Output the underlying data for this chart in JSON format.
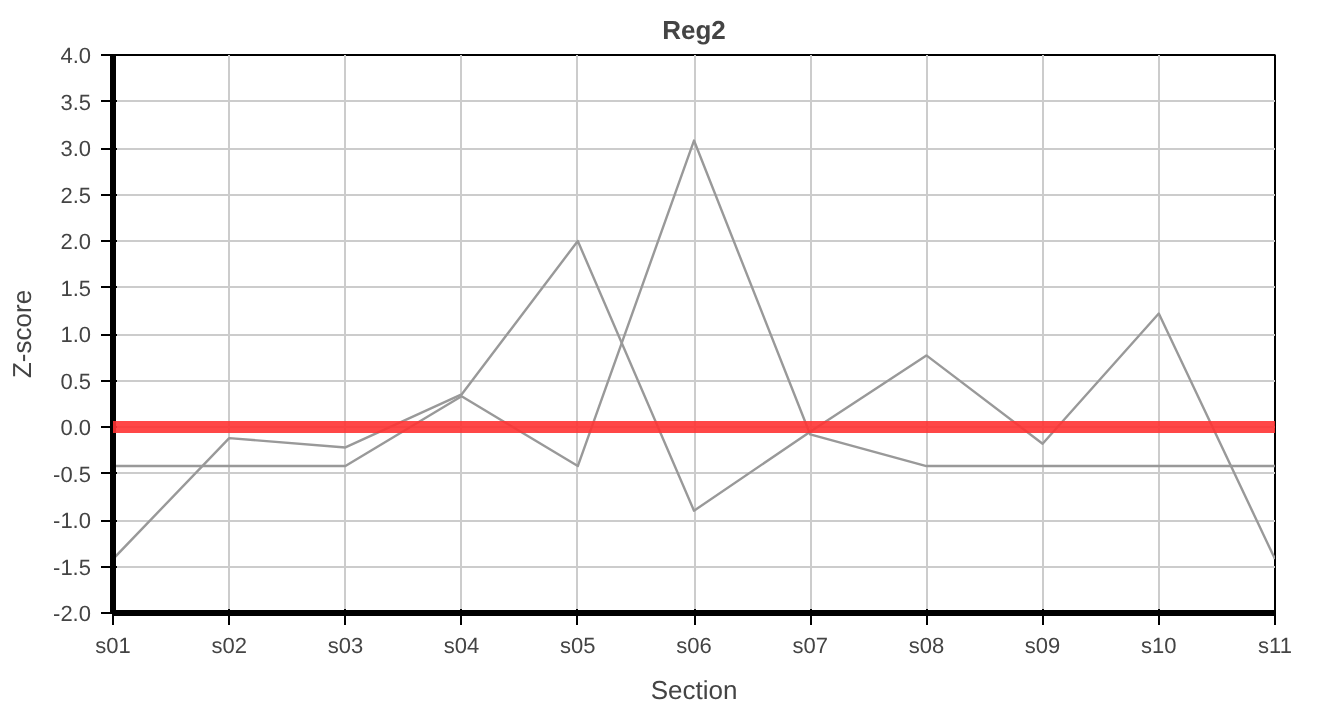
{
  "chart_data": {
    "type": "line",
    "title": "Reg2",
    "xlabel": "Section",
    "ylabel": "Z-score",
    "categories": [
      "s01",
      "s02",
      "s03",
      "s04",
      "s05",
      "s06",
      "s07",
      "s08",
      "s09",
      "s10",
      "s11"
    ],
    "series": [
      {
        "color": "#999999",
        "values": [
          -1.42,
          -0.12,
          -0.22,
          0.35,
          2.0,
          -0.9,
          -0.05,
          0.77,
          -0.18,
          1.22,
          -1.42
        ]
      },
      {
        "color": "#999999",
        "values": [
          -0.42,
          -0.42,
          -0.42,
          0.33,
          -0.42,
          3.08,
          -0.08,
          -0.42,
          -0.42,
          -0.42,
          -0.42
        ]
      }
    ],
    "ylim": [
      -2.0,
      4.0
    ],
    "yticks": [
      {
        "value": -2.0,
        "label": "-2.0"
      },
      {
        "value": -1.5,
        "label": "-1.5"
      },
      {
        "value": -1.0,
        "label": "-1.0"
      },
      {
        "value": -0.5,
        "label": "-0.5"
      },
      {
        "value": 0,
        "label": "0.0"
      },
      {
        "value": 0.5,
        "label": "0.5"
      },
      {
        "value": 1.0,
        "label": "1.0"
      },
      {
        "value": 1.5,
        "label": "1.5"
      },
      {
        "value": 2.0,
        "label": "2.0"
      },
      {
        "value": 2.5,
        "label": "2.5"
      },
      {
        "value": 3.0,
        "label": "3.0"
      },
      {
        "value": 3.5,
        "label": "3.5"
      },
      {
        "value": 4.0,
        "label": "4.0"
      }
    ],
    "ref_lines": [
      {
        "axis": "y",
        "value": 0,
        "color": "#ff3333"
      }
    ],
    "grid": true,
    "marker": "none",
    "line_style": "solid"
  }
}
